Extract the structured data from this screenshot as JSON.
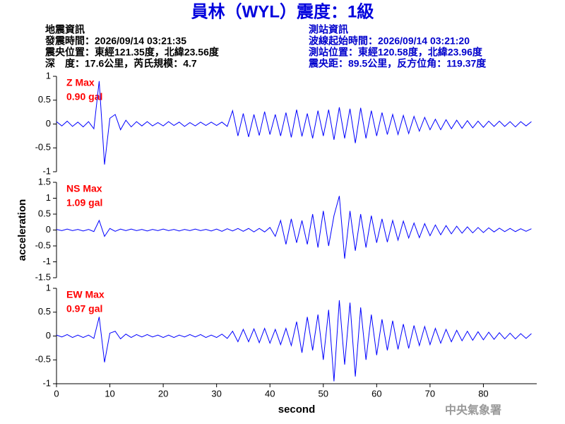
{
  "title": "員林（WYL）震度：1級",
  "left_info": [
    "地震資訊",
    "發震時間：2026/09/14 03:21:35",
    "震央位置：東經121.35度，北緯23.56度",
    "深　度：17.6公里，芮氏規模：4.7"
  ],
  "right_info": [
    "測站資訊",
    "波線起始時間：2026/09/14 03:21:20",
    "測站位置：東經120.58度，北緯23.96度",
    "震央距：89.5公里，反方位角：119.37度"
  ],
  "footer": "中央氣象署",
  "chart_data": [
    {
      "type": "line",
      "annotations": [
        "Z Max",
        "0.90 gal"
      ],
      "color": "#0000ff",
      "xlim": [
        0,
        90
      ],
      "ylim": [
        -1,
        1
      ],
      "yticks": [
        -1,
        -0.5,
        0,
        0.5,
        1
      ],
      "x": [
        0,
        1,
        2,
        3,
        4,
        5,
        6,
        7,
        8,
        9,
        10,
        11,
        12,
        13,
        14,
        15,
        16,
        17,
        18,
        19,
        20,
        21,
        22,
        23,
        24,
        25,
        26,
        27,
        28,
        29,
        30,
        31,
        32,
        33,
        34,
        35,
        36,
        37,
        38,
        39,
        40,
        41,
        42,
        43,
        44,
        45,
        46,
        47,
        48,
        49,
        50,
        51,
        52,
        53,
        54,
        55,
        56,
        57,
        58,
        59,
        60,
        61,
        62,
        63,
        64,
        65,
        66,
        67,
        68,
        69,
        70,
        71,
        72,
        73,
        74,
        75,
        76,
        77,
        78,
        79,
        80,
        81,
        82,
        83,
        84,
        85,
        86,
        87,
        88,
        89
      ],
      "values": [
        0.05,
        -0.04,
        0.06,
        -0.05,
        0.04,
        -0.06,
        0.05,
        -0.1,
        0.9,
        -0.85,
        0.12,
        0.2,
        -0.12,
        0.08,
        -0.06,
        0.05,
        -0.04,
        0.05,
        -0.04,
        0.03,
        -0.04,
        0.05,
        -0.03,
        0.04,
        -0.05,
        0.03,
        -0.04,
        0.04,
        -0.03,
        0.04,
        -0.03,
        0.04,
        -0.05,
        0.28,
        -0.25,
        0.22,
        -0.27,
        0.2,
        -0.24,
        0.26,
        -0.22,
        0.2,
        -0.25,
        0.24,
        -0.28,
        0.3,
        -0.26,
        0.22,
        -0.3,
        0.28,
        -0.25,
        0.3,
        -0.33,
        0.35,
        -0.3,
        0.32,
        -0.4,
        0.34,
        -0.3,
        0.28,
        -0.25,
        0.24,
        -0.22,
        0.2,
        -0.22,
        0.18,
        -0.2,
        0.16,
        -0.15,
        0.14,
        -0.12,
        0.1,
        -0.12,
        0.09,
        -0.1,
        0.08,
        -0.09,
        0.07,
        -0.08,
        0.06,
        -0.07,
        0.06,
        -0.05,
        0.06,
        -0.05,
        0.05,
        -0.06,
        0.05,
        -0.04,
        0.05
      ]
    },
    {
      "type": "line",
      "annotations": [
        "NS Max",
        "1.09 gal"
      ],
      "color": "#0000ff",
      "ylabel": "acceleration",
      "xlim": [
        0,
        90
      ],
      "ylim": [
        -1.5,
        1.5
      ],
      "yticks": [
        -1.5,
        -1,
        -0.5,
        0,
        0.5,
        1,
        1.5
      ],
      "x": [
        0,
        1,
        2,
        3,
        4,
        5,
        6,
        7,
        8,
        9,
        10,
        11,
        12,
        13,
        14,
        15,
        16,
        17,
        18,
        19,
        20,
        21,
        22,
        23,
        24,
        25,
        26,
        27,
        28,
        29,
        30,
        31,
        32,
        33,
        34,
        35,
        36,
        37,
        38,
        39,
        40,
        41,
        42,
        43,
        44,
        45,
        46,
        47,
        48,
        49,
        50,
        51,
        52,
        53,
        54,
        55,
        56,
        57,
        58,
        59,
        60,
        61,
        62,
        63,
        64,
        65,
        66,
        67,
        68,
        69,
        70,
        71,
        72,
        73,
        74,
        75,
        76,
        77,
        78,
        79,
        80,
        81,
        82,
        83,
        84,
        85,
        86,
        87,
        88,
        89
      ],
      "values": [
        0.02,
        -0.02,
        0.03,
        -0.02,
        0.02,
        -0.03,
        0.02,
        -0.05,
        0.3,
        -0.2,
        0.05,
        -0.04,
        0.03,
        -0.02,
        0.03,
        -0.02,
        0.02,
        -0.03,
        0.02,
        -0.02,
        0.03,
        -0.02,
        0.02,
        -0.03,
        0.02,
        -0.02,
        0.03,
        -0.02,
        0.02,
        -0.03,
        0.03,
        -0.04,
        0.04,
        -0.03,
        0.05,
        -0.04,
        0.05,
        -0.06,
        0.05,
        -0.06,
        0.08,
        -0.2,
        0.3,
        -0.45,
        0.35,
        -0.4,
        0.3,
        -0.45,
        0.5,
        -0.55,
        0.6,
        -0.5,
        0.45,
        1.07,
        -0.9,
        0.6,
        -0.65,
        0.5,
        -0.55,
        0.45,
        -0.4,
        0.35,
        -0.38,
        0.3,
        -0.32,
        0.28,
        -0.25,
        0.22,
        -0.24,
        0.2,
        -0.18,
        0.16,
        -0.15,
        0.14,
        -0.12,
        0.12,
        -0.1,
        0.1,
        -0.09,
        0.08,
        -0.08,
        0.07,
        -0.06,
        0.06,
        -0.05,
        0.05,
        -0.05,
        0.04,
        -0.04,
        0.04
      ]
    },
    {
      "type": "line",
      "annotations": [
        "EW Max",
        "0.97 gal"
      ],
      "color": "#0000ff",
      "xlabel": "second",
      "xlim": [
        0,
        90
      ],
      "xticks": [
        0,
        10,
        20,
        30,
        40,
        50,
        60,
        70,
        80
      ],
      "ylim": [
        -1,
        1
      ],
      "yticks": [
        -1,
        -0.5,
        0,
        0.5,
        1
      ],
      "x": [
        0,
        1,
        2,
        3,
        4,
        5,
        6,
        7,
        8,
        9,
        10,
        11,
        12,
        13,
        14,
        15,
        16,
        17,
        18,
        19,
        20,
        21,
        22,
        23,
        24,
        25,
        26,
        27,
        28,
        29,
        30,
        31,
        32,
        33,
        34,
        35,
        36,
        37,
        38,
        39,
        40,
        41,
        42,
        43,
        44,
        45,
        46,
        47,
        48,
        49,
        50,
        51,
        52,
        53,
        54,
        55,
        56,
        57,
        58,
        59,
        60,
        61,
        62,
        63,
        64,
        65,
        66,
        67,
        68,
        69,
        70,
        71,
        72,
        73,
        74,
        75,
        76,
        77,
        78,
        79,
        80,
        81,
        82,
        83,
        84,
        85,
        86,
        87,
        88,
        89
      ],
      "values": [
        0.02,
        -0.02,
        0.03,
        -0.03,
        0.02,
        -0.03,
        0.02,
        -0.05,
        0.4,
        -0.55,
        0.06,
        0.1,
        -0.06,
        0.04,
        -0.03,
        0.03,
        -0.02,
        0.03,
        -0.02,
        0.02,
        -0.03,
        0.02,
        -0.03,
        0.02,
        -0.02,
        0.03,
        -0.02,
        0.03,
        -0.03,
        0.02,
        -0.03,
        0.04,
        -0.05,
        0.1,
        -0.12,
        0.14,
        -0.12,
        0.15,
        -0.14,
        0.16,
        -0.15,
        0.14,
        -0.18,
        0.16,
        -0.2,
        0.3,
        -0.35,
        0.4,
        -0.3,
        0.45,
        -0.5,
        0.55,
        -0.95,
        0.75,
        -0.6,
        0.7,
        -0.85,
        0.6,
        -0.5,
        0.45,
        -0.4,
        0.35,
        -0.3,
        0.32,
        -0.28,
        0.25,
        -0.26,
        0.22,
        -0.2,
        0.2,
        -0.18,
        0.16,
        -0.15,
        0.14,
        -0.12,
        0.12,
        -0.1,
        0.1,
        -0.09,
        0.09,
        -0.08,
        0.08,
        -0.07,
        0.07,
        -0.06,
        0.06,
        -0.06,
        0.05,
        -0.05,
        0.05
      ]
    }
  ]
}
